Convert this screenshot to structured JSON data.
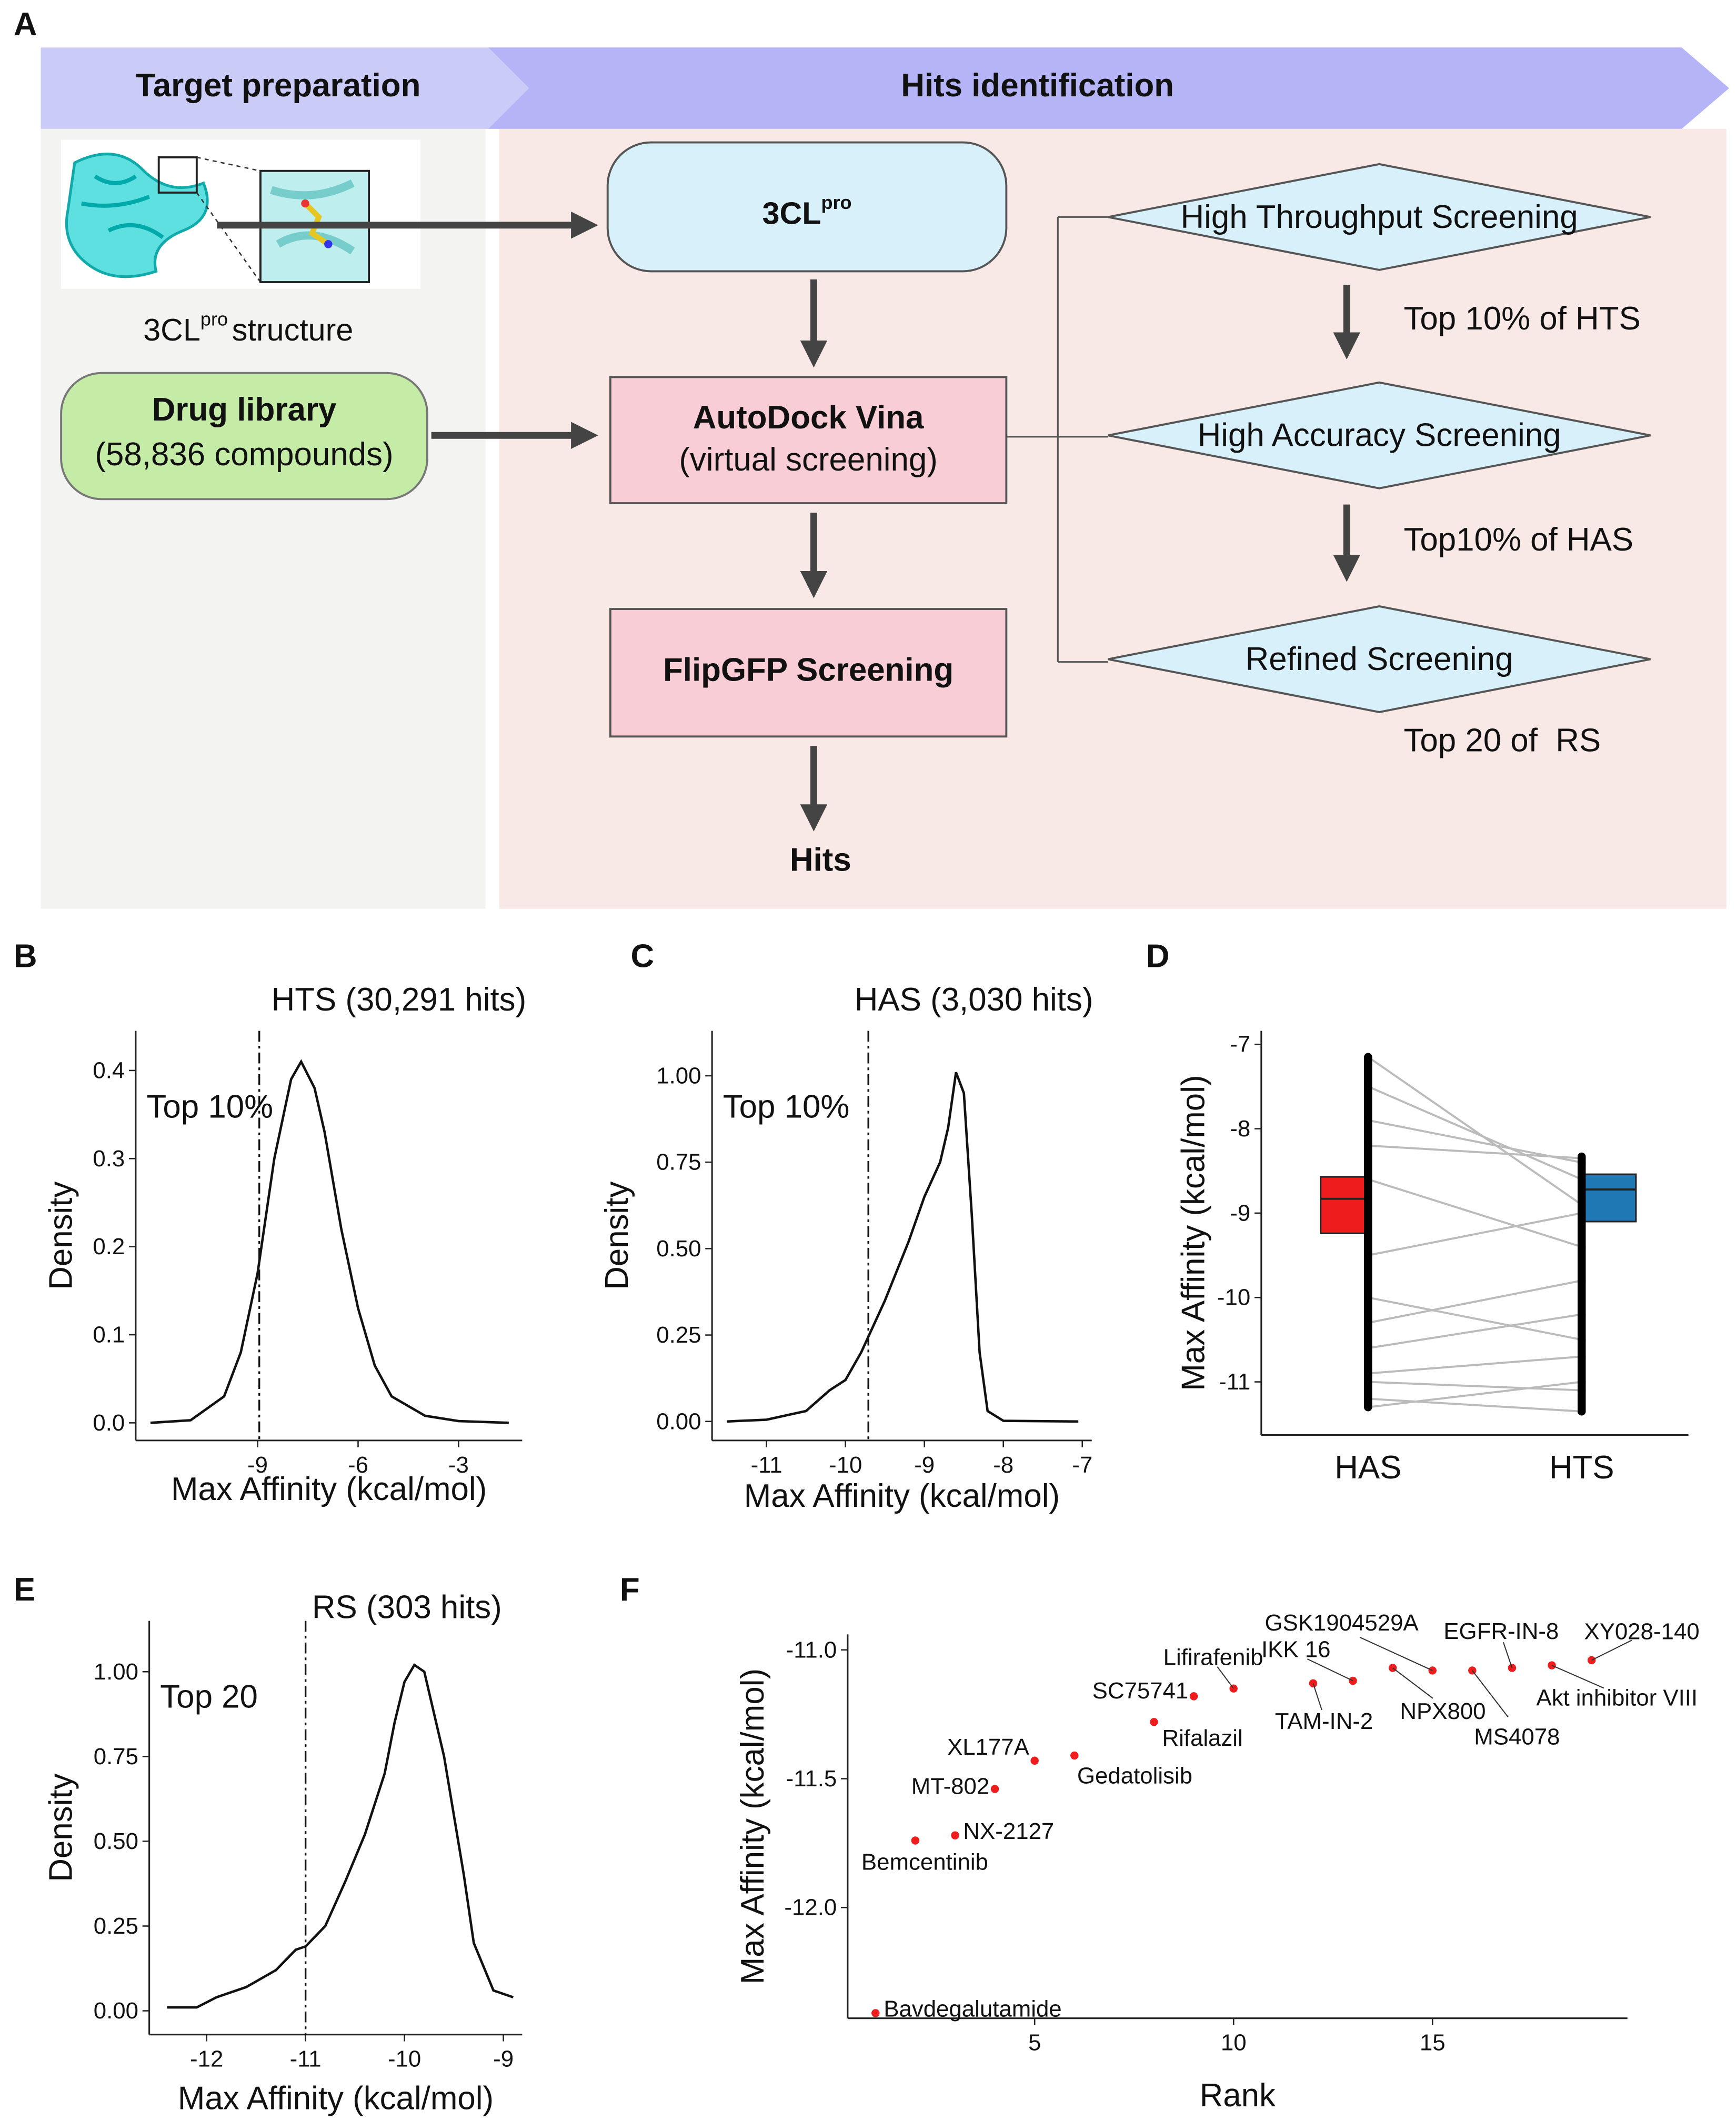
{
  "panel_label": "A",
  "diagram": {
    "phases": [
      "Target preparation",
      "Hits identification"
    ],
    "target": {
      "name": "3CL",
      "superscript": "pro"
    },
    "structure_caption": {
      "name": "3CL",
      "superscript": "pro",
      "text": "structure"
    },
    "library": {
      "title": "Drug library",
      "subtitle": "(58,836 compounds)"
    },
    "docking": {
      "title": "AutoDock Vina",
      "subtitle": "(virtual screening)"
    },
    "assay": "FlipGFP Screening",
    "result": "Hits",
    "stages": [
      "High Throughput Screening",
      "High Accuracy Screening",
      "Refined Screening"
    ],
    "filters": [
      "Top 10% of HTS",
      "Top10% of HAS",
      "Top 20 of  RS"
    ]
  },
  "chart_data": [
    {
      "type": "density",
      "panel": "B",
      "title": "HTS (30,291 hits)",
      "x_label": "Max Affinity (kcal/mol)",
      "y_label": "Density",
      "x": [
        -12.2,
        -11,
        -10,
        -9.5,
        -9,
        -8.5,
        -8,
        -7.7,
        -7.3,
        -7,
        -6.5,
        -6,
        -5.5,
        -5,
        -4,
        -3,
        -1.5
      ],
      "values": [
        0,
        0.003,
        0.03,
        0.08,
        0.17,
        0.3,
        0.39,
        0.41,
        0.38,
        0.33,
        0.22,
        0.13,
        0.065,
        0.03,
        0.008,
        0.002,
        0
      ],
      "xlim": [
        -12.64,
        -1.1
      ],
      "ylim": [
        -0.02,
        0.445
      ],
      "xticks": [
        -9,
        -6,
        -3
      ],
      "yticks": [
        {
          "value": 0,
          "label": "0.0"
        },
        0.1,
        0.2,
        0.3,
        0.4
      ],
      "cutoff": -8.95,
      "annotation": "Top 10%"
    },
    {
      "type": "density",
      "panel": "C",
      "title": "HAS (3,030 hits)",
      "x_label": "Max Affinity (kcal/mol)",
      "y_label": "Density",
      "x": [
        -11.5,
        -11,
        -10.5,
        -10.2,
        -10,
        -9.8,
        -9.5,
        -9.2,
        -9,
        -8.8,
        -8.7,
        -8.6,
        -8.5,
        -8.4,
        -8.3,
        -8.2,
        -8,
        -7.05
      ],
      "values": [
        0,
        0.005,
        0.03,
        0.09,
        0.12,
        0.2,
        0.35,
        0.52,
        0.65,
        0.75,
        0.85,
        1.01,
        0.95,
        0.6,
        0.2,
        0.03,
        0.002,
        0
      ],
      "xlim": [
        -11.69,
        -6.88
      ],
      "ylim": [
        -0.055,
        1.13
      ],
      "xticks": [
        -11,
        -10,
        -9,
        -8,
        -7
      ],
      "yticks": [
        {
          "value": 0,
          "label": "0.00"
        },
        0.25,
        {
          "value": 0.5,
          "label": "0.50"
        },
        0.75,
        {
          "value": 1,
          "label": "1.00"
        }
      ],
      "cutoff": -9.71,
      "annotation": "Top 10%"
    },
    {
      "type": "box",
      "panel": "D",
      "y_label": "Max Affinity (kcal/mol)",
      "categories": [
        "HAS",
        "HTS"
      ],
      "boxes": [
        {
          "color": "#ee1c1c",
          "q1": -9.24,
          "median": -8.83,
          "q3": -8.57,
          "min": -11.3,
          "max": -7.15
        },
        {
          "color": "#1f78b4",
          "q1": -9.1,
          "median": -8.72,
          "q3": -8.54,
          "min": -11.35,
          "max": -8.33
        }
      ],
      "pairs": [
        [
          -7.15,
          -8.9
        ],
        [
          -7.5,
          -8.6
        ],
        [
          -7.9,
          -8.4
        ],
        [
          -8.2,
          -8.35
        ],
        [
          -8.6,
          -9.4
        ],
        [
          -9.5,
          -9.0
        ],
        [
          -10.0,
          -10.5
        ],
        [
          -10.3,
          -9.8
        ],
        [
          -10.6,
          -10.2
        ],
        [
          -10.9,
          -10.7
        ],
        [
          -11.0,
          -11.1
        ],
        [
          -11.2,
          -11.35
        ],
        [
          -11.3,
          -11.0
        ]
      ],
      "ylim": [
        -11.63,
        -6.84
      ],
      "yticks": [
        -7,
        -8,
        -9,
        -10,
        -11
      ]
    },
    {
      "type": "density",
      "panel": "E",
      "title": "RS (303 hits)",
      "x_label": "Max Affinity (kcal/mol)",
      "y_label": "Density",
      "x": [
        -12.4,
        -12.1,
        -11.9,
        -11.6,
        -11.3,
        -11.1,
        -11,
        -10.8,
        -10.6,
        -10.4,
        -10.2,
        -10.1,
        -10,
        -9.9,
        -9.8,
        -9.6,
        -9.4,
        -9.3,
        -9.1,
        -8.9
      ],
      "values": [
        0.01,
        0.01,
        0.04,
        0.07,
        0.12,
        0.18,
        0.19,
        0.25,
        0.38,
        0.52,
        0.7,
        0.85,
        0.97,
        1.02,
        1.0,
        0.75,
        0.4,
        0.2,
        0.06,
        0.04
      ],
      "xlim": [
        -12.58,
        -8.81
      ],
      "ylim": [
        -0.07,
        1.15
      ],
      "xticks": [
        -12,
        -11,
        -10,
        -9
      ],
      "yticks": [
        {
          "value": 0,
          "label": "0.00"
        },
        0.25,
        {
          "value": 0.5,
          "label": "0.50"
        },
        0.75,
        {
          "value": 1,
          "label": "1.00"
        }
      ],
      "cutoff": -11.0,
      "annotation": "Top 20"
    },
    {
      "type": "scatter",
      "panel": "F",
      "x_label": "Rank",
      "y_label": "Max Affinity (kcal/mol)",
      "color": "#ee1c1c",
      "labels": [
        "Bavdegalutamide",
        "Bemcentinib",
        "NX-2127",
        "MT-802",
        "XL177A",
        "Gedatolisib",
        "Rifalazil",
        "SC75741",
        "Lifirafenib",
        "TAM-IN-2",
        "IKK 16",
        "NPX800",
        "GSK1904529A",
        "MS4078",
        "EGFR-IN-8",
        "Akt inhibitor VIII",
        "XY028-140"
      ],
      "x": [
        1,
        2,
        3,
        4,
        5,
        6,
        8,
        9,
        10,
        12,
        13,
        14,
        15,
        16,
        17,
        18,
        19
      ],
      "values": [
        -12.41,
        -11.74,
        -11.72,
        -11.54,
        -11.43,
        -11.41,
        -11.28,
        -11.18,
        -11.15,
        -11.13,
        -11.12,
        -11.07,
        -11.08,
        -11.08,
        -11.07,
        -11.06,
        -11.04
      ],
      "xlim": [
        0.3,
        19.9
      ],
      "ylim": [
        -12.43,
        -10.94
      ],
      "xticks": [
        5,
        10,
        15
      ],
      "yticks": [
        {
          "value": -12,
          "label": "-12.0"
        },
        -11.5,
        {
          "value": -11,
          "label": "-11.0"
        }
      ]
    }
  ]
}
